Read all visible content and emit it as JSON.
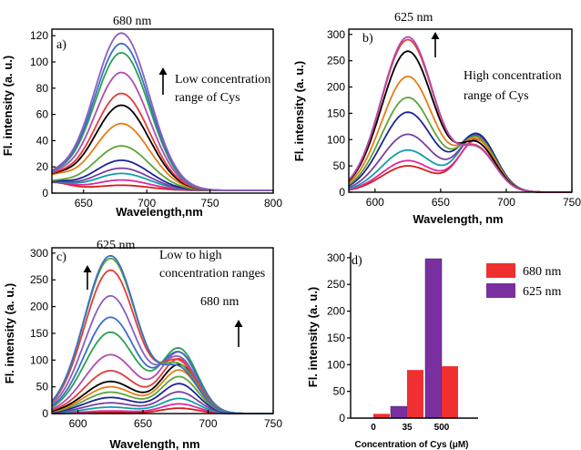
{
  "colors": [
    "#d81b1b",
    "#e0289a",
    "#0f9fa8",
    "#7c3fa0",
    "#1c2596",
    "#5ea33a",
    "#e77c14",
    "#000000",
    "#e23b3b",
    "#b24cb0",
    "#2aa14e",
    "#3a6fc8",
    "#8a5fc0",
    "#e23b3b",
    "#5ea33a",
    "#3a6fc8",
    "#7c3fa0"
  ],
  "chart_data": [
    {
      "panel": "a)",
      "type": "line",
      "xlabel": "Wavelength,nm",
      "ylabel": "Fl. intensity (a. u.)",
      "xlim": [
        625,
        800
      ],
      "ylim": [
        0,
        125
      ],
      "xticks": [
        650,
        700,
        750,
        800
      ],
      "yticks": [
        0,
        20,
        40,
        60,
        80,
        100,
        120
      ],
      "annotations": [
        "680 nm",
        "Low concentration",
        "range of Cys"
      ],
      "peak_wavelength": 680,
      "series_peaks": [
        4,
        8,
        13,
        17,
        23,
        34,
        51,
        65,
        74,
        90,
        105,
        112,
        120
      ]
    },
    {
      "panel": "b)",
      "type": "line",
      "xlabel": "Wavelength, nm",
      "ylabel": "Fl. intensity (a. u.)",
      "xlim": [
        580,
        750
      ],
      "ylim": [
        0,
        310
      ],
      "xticks": [
        600,
        650,
        700,
        750
      ],
      "yticks": [
        0,
        50,
        100,
        150,
        200,
        250,
        300
      ],
      "annotations": [
        "625 nm",
        "High concentration",
        "range of Cys"
      ],
      "series": [
        {
          "p625": 50,
          "p680": 100
        },
        {
          "p625": 60,
          "p680": 98
        },
        {
          "p625": 80,
          "p680": 108
        },
        {
          "p625": 110,
          "p680": 105
        },
        {
          "p625": 152,
          "p680": 107
        },
        {
          "p625": 180,
          "p680": 100
        },
        {
          "p625": 220,
          "p680": 95
        },
        {
          "p625": 268,
          "p680": 88
        },
        {
          "p625": 290,
          "p680": 80
        },
        {
          "p625": 295,
          "p680": 78
        }
      ]
    },
    {
      "panel": "c)",
      "type": "line",
      "xlabel": "Wavelength, nm",
      "ylabel": "Fl. intensity (a. u.)",
      "xlim": [
        580,
        750
      ],
      "ylim": [
        0,
        310
      ],
      "xticks": [
        600,
        650,
        700,
        750
      ],
      "yticks": [
        0,
        50,
        100,
        150,
        200,
        250,
        300
      ],
      "annotations": [
        "625 nm",
        "Low  to high",
        "concentration ranges",
        "680 nm"
      ],
      "series": [
        {
          "p625": 2,
          "p680": 10
        },
        {
          "p625": 5,
          "p680": 18
        },
        {
          "p625": 12,
          "p680": 28
        },
        {
          "p625": 20,
          "p680": 40
        },
        {
          "p625": 30,
          "p680": 55
        },
        {
          "p625": 40,
          "p680": 68
        },
        {
          "p625": 50,
          "p680": 80
        },
        {
          "p625": 60,
          "p680": 90
        },
        {
          "p625": 80,
          "p680": 100
        },
        {
          "p625": 110,
          "p680": 112
        },
        {
          "p625": 152,
          "p680": 118
        },
        {
          "p625": 180,
          "p680": 110
        },
        {
          "p625": 220,
          "p680": 100
        },
        {
          "p625": 268,
          "p680": 92
        },
        {
          "p625": 290,
          "p680": 85
        },
        {
          "p625": 295,
          "p680": 80
        }
      ]
    },
    {
      "panel": "d)",
      "type": "bar",
      "xlabel": "Concentration of Cys (μM)",
      "ylabel": "Fl. intensity (a. u.)",
      "ylim": [
        0,
        310
      ],
      "yticks": [
        0,
        50,
        100,
        150,
        200,
        250,
        300
      ],
      "categories": [
        "0",
        "35",
        "500"
      ],
      "legend_position": "top-right",
      "series": [
        {
          "name": "680 nm",
          "color": "#f03030",
          "values": [
            8,
            90,
            97
          ]
        },
        {
          "name": "625 nm",
          "color": "#7a2fa0",
          "values": [
            0,
            22,
            298
          ]
        }
      ]
    }
  ]
}
